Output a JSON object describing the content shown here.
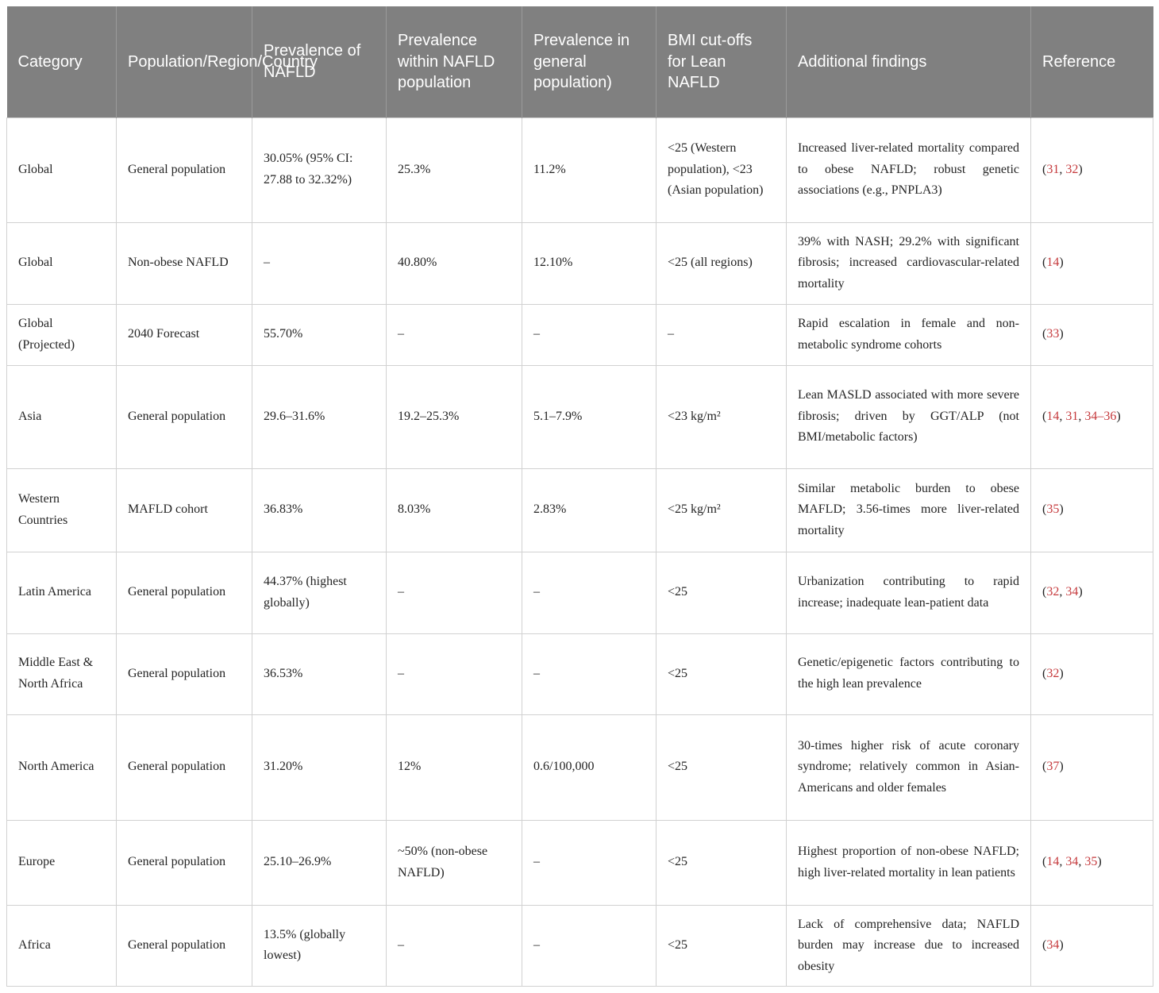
{
  "theme": {
    "header_bg": "#808080",
    "header_text_color": "#ffffff",
    "citation_link_color": "#c5393c",
    "body_text_color": "#242424",
    "grid_border_color": "#d1d1d1"
  },
  "table": {
    "columns": [
      "Category",
      "Population/Region/Country",
      "Prevalence of NAFLD",
      "Prevalence within NAFLD population",
      "Prevalence in general population)",
      "BMI cut-offs for Lean NAFLD",
      "Additional findings",
      "Reference"
    ],
    "rows": [
      {
        "category": "Global",
        "population": "General population",
        "prevalence_nafld": "30.05% (95% CI: 27.88 to 32.32%)",
        "prevalence_within_nafld": "25.3%",
        "prevalence_general": "11.2%",
        "bmi_cutoffs": "<25 (Western population), <23 (Asian population)",
        "findings": "Increased liver-related mortality compared to obese NAFLD; robust genetic associations (e.g., PNPLA3)",
        "references": [
          "31",
          "32"
        ]
      },
      {
        "category": "Global",
        "population": "Non-obese NAFLD",
        "prevalence_nafld": "–",
        "prevalence_within_nafld": "40.80%",
        "prevalence_general": "12.10%",
        "bmi_cutoffs": "<25 (all regions)",
        "findings": "39% with NASH; 29.2% with significant fibrosis; increased cardiovascular-related mortality",
        "references": [
          "14"
        ]
      },
      {
        "category": "Global (Projected)",
        "population": "2040 Forecast",
        "prevalence_nafld": "55.70%",
        "prevalence_within_nafld": "–",
        "prevalence_general": "–",
        "bmi_cutoffs": "–",
        "findings": "Rapid escalation in female and non-metabolic syndrome cohorts",
        "references": [
          "33"
        ]
      },
      {
        "category": "Asia",
        "population": "General population",
        "prevalence_nafld": "29.6–31.6%",
        "prevalence_within_nafld": "19.2–25.3%",
        "prevalence_general": "5.1–7.9%",
        "bmi_cutoffs": "<23 kg/m²",
        "findings": "Lean MASLD associated with more severe fibrosis; driven by GGT/ALP (not BMI/metabolic factors)",
        "references": [
          "14",
          "31",
          "34–36"
        ]
      },
      {
        "category": "Western Countries",
        "population": "MAFLD cohort",
        "prevalence_nafld": "36.83%",
        "prevalence_within_nafld": "8.03%",
        "prevalence_general": "2.83%",
        "bmi_cutoffs": "<25 kg/m²",
        "findings": "Similar metabolic burden to obese MAFLD; 3.56-times more liver-related mortality",
        "references": [
          "35"
        ]
      },
      {
        "category": "Latin America",
        "population": "General population",
        "prevalence_nafld": "44.37% (highest globally)",
        "prevalence_within_nafld": "–",
        "prevalence_general": "–",
        "bmi_cutoffs": "<25",
        "findings": "Urbanization contributing to rapid increase; inadequate lean-patient data",
        "references": [
          "32",
          "34"
        ]
      },
      {
        "category": "Middle East & North Africa",
        "population": "General population",
        "prevalence_nafld": "36.53%",
        "prevalence_within_nafld": "–",
        "prevalence_general": "–",
        "bmi_cutoffs": "<25",
        "findings": "Genetic/epigenetic factors contributing to the high lean prevalence",
        "references": [
          "32"
        ]
      },
      {
        "category": "North America",
        "population": "General population",
        "prevalence_nafld": "31.20%",
        "prevalence_within_nafld": "12%",
        "prevalence_general": "0.6/100,000",
        "bmi_cutoffs": "<25",
        "findings": "30-times higher risk of acute coronary syndrome; relatively common in Asian-Americans and older females",
        "references": [
          "37"
        ]
      },
      {
        "category": "Europe",
        "population": "General population",
        "prevalence_nafld": "25.10–26.9%",
        "prevalence_within_nafld": "~50% (non-obese NAFLD)",
        "prevalence_general": "–",
        "bmi_cutoffs": "<25",
        "findings": "Highest proportion of non-obese NAFLD; high liver-related mortality in lean patients",
        "references": [
          "14",
          "34",
          "35"
        ]
      },
      {
        "category": "Africa",
        "population": "General population",
        "prevalence_nafld": "13.5% (globally lowest)",
        "prevalence_within_nafld": "–",
        "prevalence_general": "–",
        "bmi_cutoffs": "<25",
        "findings": "Lack of comprehensive data; NAFLD burden may increase due to increased obesity",
        "references": [
          "34"
        ]
      }
    ]
  }
}
